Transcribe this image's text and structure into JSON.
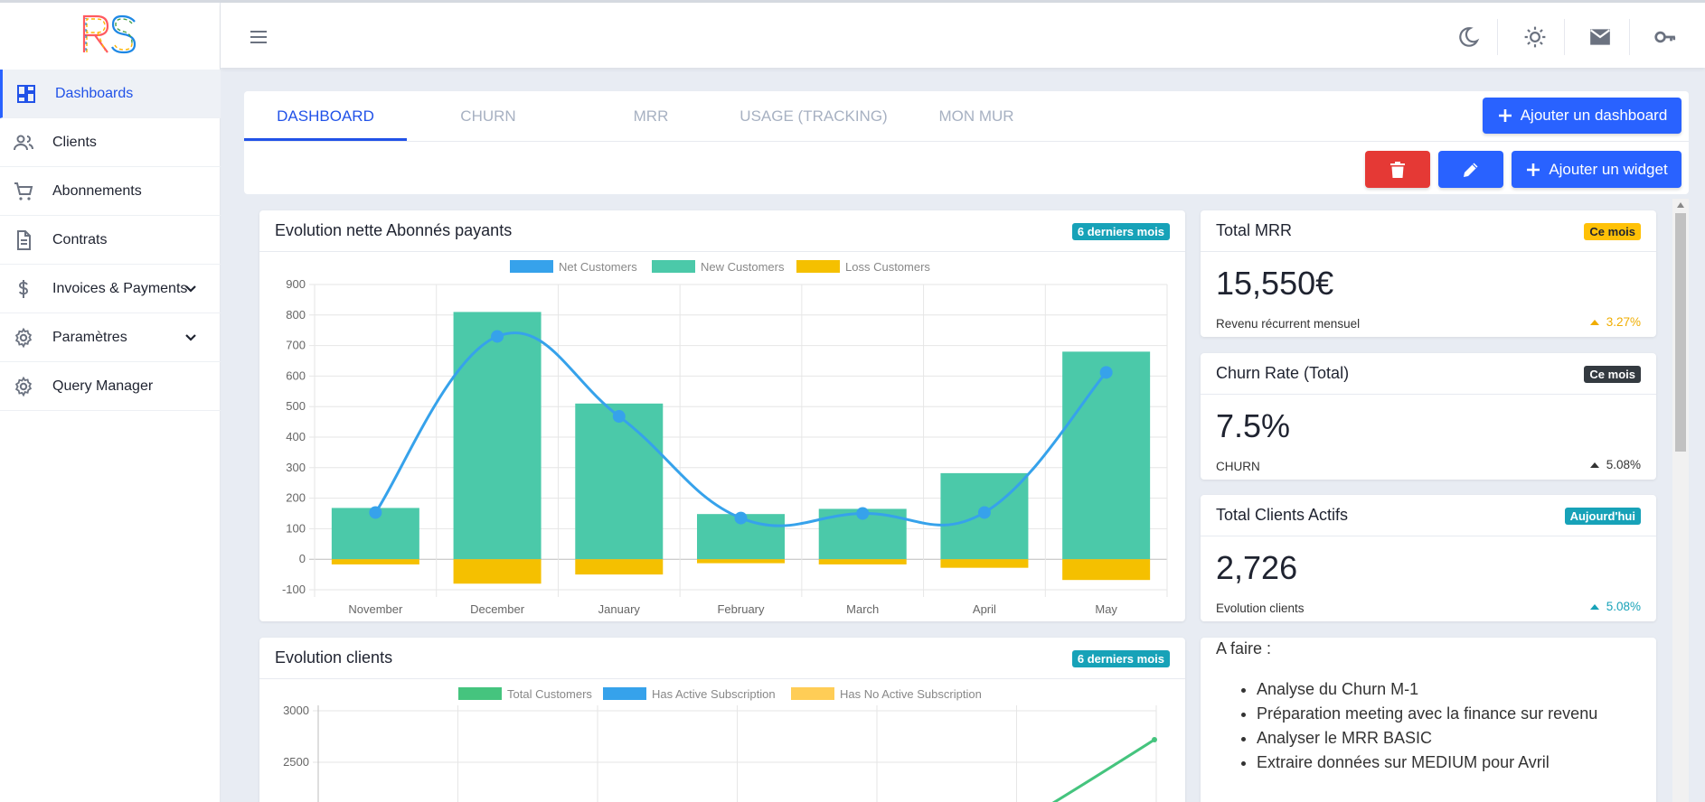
{
  "app": {
    "logo_text": "RS",
    "header_icons": [
      "moon-icon",
      "sun-icon",
      "mail-icon",
      "key-icon"
    ]
  },
  "sidebar": {
    "items": [
      {
        "label": "Dashboards",
        "icon": "dashboard-icon",
        "active": true
      },
      {
        "label": "Clients",
        "icon": "users-icon"
      },
      {
        "label": "Abonnements",
        "icon": "cart-icon"
      },
      {
        "label": "Contrats",
        "icon": "document-icon"
      },
      {
        "label": "Invoices & Payments",
        "icon": "dollar-icon",
        "expandable": true
      },
      {
        "label": "Paramètres",
        "icon": "gear-icon",
        "expandable": true
      },
      {
        "label": "Query Manager",
        "icon": "gear-icon"
      }
    ]
  },
  "tabs": [
    {
      "label": "DASHBOARD",
      "active": true
    },
    {
      "label": "CHURN"
    },
    {
      "label": "MRR"
    },
    {
      "label": "USAGE (TRACKING)"
    },
    {
      "label": "MON MUR"
    }
  ],
  "actions": {
    "add_dashboard": "Ajouter un dashboard",
    "add_widget": "Ajouter un widget"
  },
  "widgets": {
    "net_subscribers": {
      "title": "Evolution nette Abonnés payants",
      "badge": "6 derniers mois"
    },
    "clients_evolution": {
      "title": "Evolution clients",
      "badge": "6 derniers mois"
    },
    "total_mrr": {
      "title": "Total MRR",
      "badge": "Ce mois",
      "value": "15,550€",
      "label": "Revenu récurrent mensuel",
      "delta": "3.27%"
    },
    "churn_rate": {
      "title": "Churn Rate (Total)",
      "badge": "Ce mois",
      "value": "7.5%",
      "label": "CHURN",
      "delta": "5.08%"
    },
    "active_clients": {
      "title": "Total Clients Actifs",
      "badge": "Aujourd'hui",
      "value": "2,726",
      "label": "Evolution clients",
      "delta": "5.08%"
    },
    "todo": {
      "title": "A faire :",
      "items": [
        "Analyse du Churn M-1",
        "Préparation meeting avec la finance sur revenu",
        "Analyser le MRR BASIC",
        "Extraire données sur MEDIUM pour Avril"
      ]
    }
  },
  "colors": {
    "primary": "#2962ff",
    "danger": "#e53935",
    "net": "#36a2eb",
    "new": "#4bc9a9",
    "loss": "#f5c000",
    "total": "#45c47e",
    "active_sub": "#36a2eb",
    "no_sub": "#ffcd56"
  },
  "chart_data": [
    {
      "type": "bar",
      "categories": [
        "November",
        "December",
        "January",
        "February",
        "March",
        "April",
        "May"
      ],
      "series": [
        {
          "name": "Net Customers",
          "type": "line",
          "values": [
            153,
            730,
            468,
            135,
            150,
            153,
            612
          ]
        },
        {
          "name": "New Customers",
          "type": "bar",
          "values": [
            168,
            810,
            510,
            148,
            165,
            282,
            680
          ]
        },
        {
          "name": "Loss Customers",
          "type": "bar",
          "values": [
            -17,
            -80,
            -50,
            -13,
            -17,
            -28,
            -68
          ]
        }
      ],
      "ylim": [
        -100,
        900
      ],
      "yticks": [
        900,
        800,
        700,
        600,
        500,
        400,
        300,
        200,
        100,
        0,
        -100
      ],
      "legend": "top",
      "grid": true
    },
    {
      "type": "line",
      "series": [
        {
          "name": "Total Customers"
        },
        {
          "name": "Has Active Subscription"
        },
        {
          "name": "Has No Active Subscription"
        }
      ],
      "yticks": [
        3000,
        2500
      ],
      "legend": "top",
      "grid": true
    }
  ]
}
